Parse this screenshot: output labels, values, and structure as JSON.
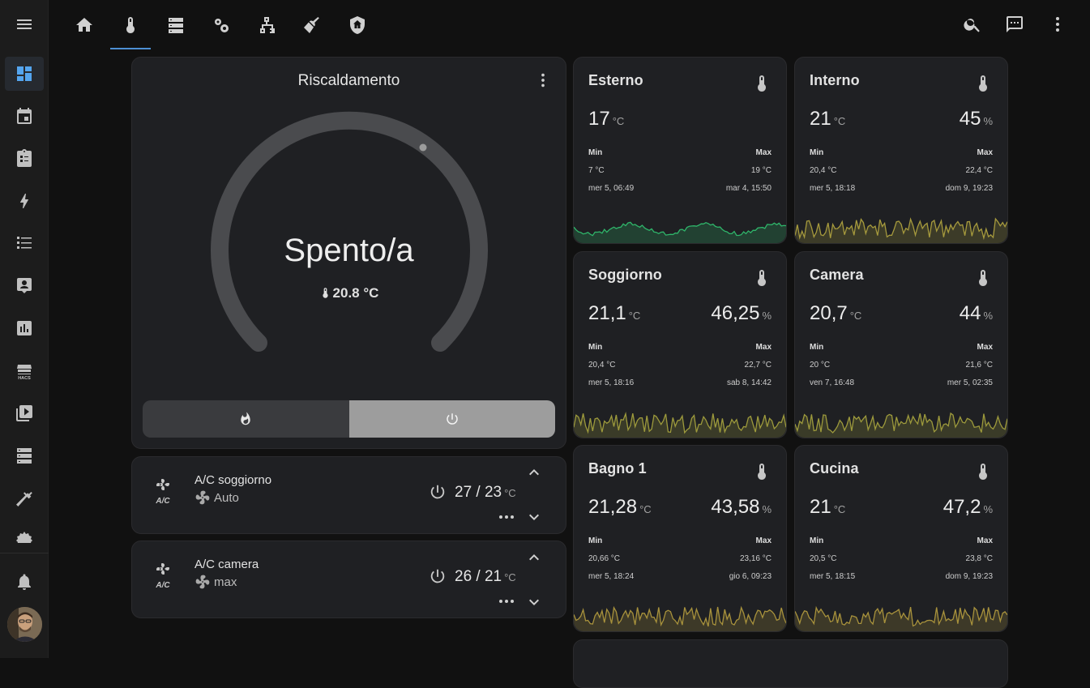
{
  "topbar": {
    "tabs": [
      {
        "icon": "home-icon"
      },
      {
        "icon": "thermometer-icon",
        "active": true
      },
      {
        "icon": "server-icon"
      },
      {
        "icon": "gears-icon"
      },
      {
        "icon": "network-icon"
      },
      {
        "icon": "broom-icon"
      },
      {
        "icon": "home-shield-icon"
      }
    ],
    "actions": [
      "search-icon",
      "assist-chat-icon",
      "more-vertical-icon"
    ]
  },
  "sidebar": {
    "items": [
      "dashboard-icon",
      "calendar-icon",
      "clipboard-list-icon",
      "energy-icon",
      "todo-list-icon",
      "account-box-icon",
      "chart-box-icon",
      "hacs-icon",
      "media-icon",
      "server-icon",
      "hammer-icon",
      "settings-icon"
    ],
    "notifications": "bell-icon"
  },
  "thermostat": {
    "title": "Riscaldamento",
    "state": "Spento/a",
    "current_temperature": "20.8 °C",
    "modes": [
      "heat",
      "off"
    ],
    "selected_mode": "off"
  },
  "ac_units": [
    {
      "name": "A/C soggiorno",
      "fan_mode": "Auto",
      "target": "27 / 23",
      "unit": "°C"
    },
    {
      "name": "A/C camera",
      "fan_mode": "max",
      "target": "26 / 21",
      "unit": "°C"
    }
  ],
  "sensors": [
    {
      "name": "Esterno",
      "temp": "17",
      "temp_unit": "°C",
      "hum": "",
      "hum_unit": "",
      "min_label": "Min",
      "max_label": "Max",
      "min": "7 °C",
      "max": "19 °C",
      "min_time": "mer 5, 06:49",
      "max_time": "mar 4, 15:50",
      "color": "#2fb56a"
    },
    {
      "name": "Interno",
      "temp": "21",
      "temp_unit": "°C",
      "hum": "45",
      "hum_unit": "%",
      "min_label": "Min",
      "max_label": "Max",
      "min": "20,4 °C",
      "max": "22,4 °C",
      "min_time": "mer 5, 18:18",
      "max_time": "dom 9, 19:23",
      "color": "#a69a3d"
    },
    {
      "name": "Soggiorno",
      "temp": "21,1",
      "temp_unit": "°C",
      "hum": "46,25",
      "hum_unit": "%",
      "min_label": "Min",
      "max_label": "Max",
      "min": "20,4 °C",
      "max": "22,7 °C",
      "min_time": "mer 5, 18:16",
      "max_time": "sab 8, 14:42",
      "color": "#9d9a3c"
    },
    {
      "name": "Camera",
      "temp": "20,7",
      "temp_unit": "°C",
      "hum": "44",
      "hum_unit": "%",
      "min_label": "Min",
      "max_label": "Max",
      "min": "20 °C",
      "max": "21,6 °C",
      "min_time": "ven 7, 16:48",
      "max_time": "mer 5, 02:35",
      "color": "#9d9a3c"
    },
    {
      "name": "Bagno 1",
      "temp": "21,28",
      "temp_unit": "°C",
      "hum": "43,58",
      "hum_unit": "%",
      "min_label": "Min",
      "max_label": "Max",
      "min": "20,66 °C",
      "max": "23,16 °C",
      "min_time": "mer 5, 18:24",
      "max_time": "gio 6, 09:23",
      "color": "#a8923c"
    },
    {
      "name": "Cucina",
      "temp": "21",
      "temp_unit": "°C",
      "hum": "47,2",
      "hum_unit": "%",
      "min_label": "Min",
      "max_label": "Max",
      "min": "20,5 °C",
      "max": "23,8 °C",
      "min_time": "mer 5, 18:15",
      "max_time": "dom 9, 19:23",
      "color": "#a8923c"
    }
  ]
}
